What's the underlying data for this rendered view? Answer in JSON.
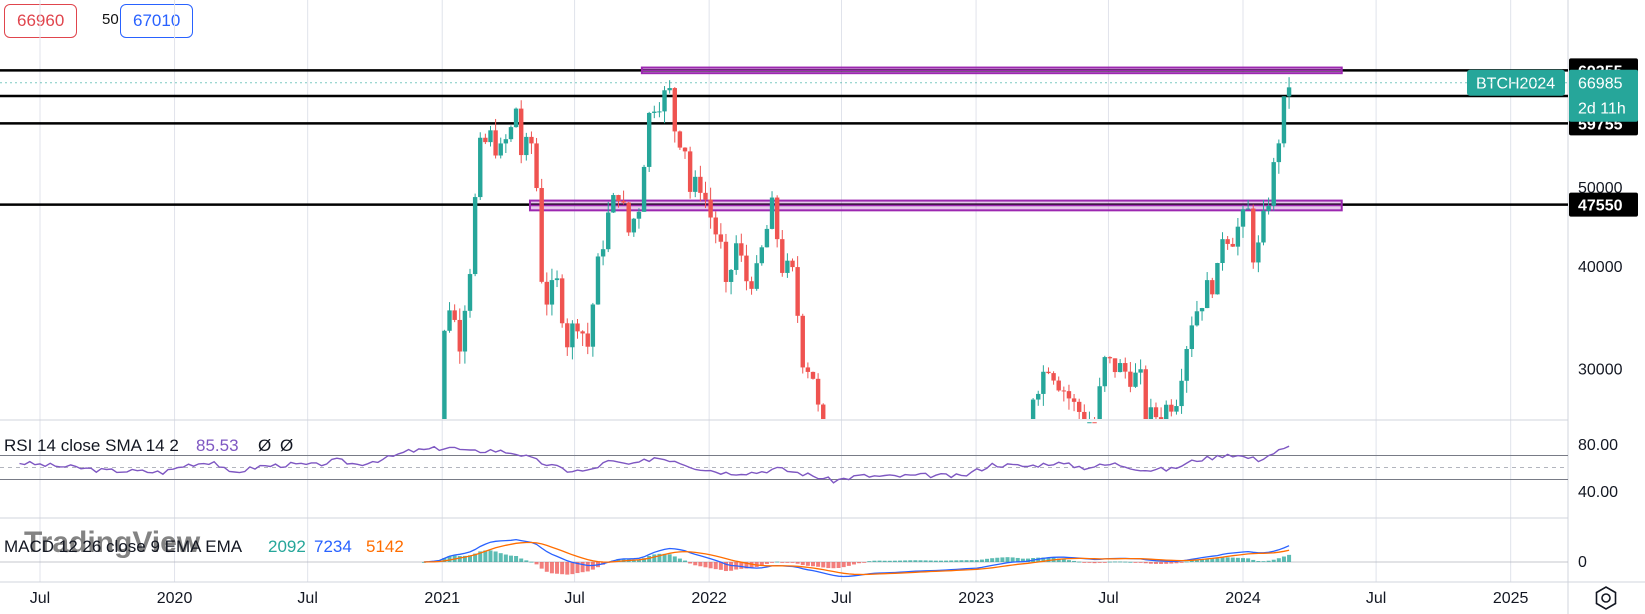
{
  "top_bar": {
    "bid": "66960",
    "spread": "50",
    "ask": "67010"
  },
  "colors": {
    "up": "#26a69a",
    "down": "#ef5350",
    "zone": "#9c27b0",
    "rsi": "#7e57c2",
    "macd": "#2962ff",
    "signal": "#ff6d00",
    "last_badge": "#26a69a",
    "level_badge": "#000000"
  },
  "watermark": "TradingView",
  "settings_icon": "gear-hexagon-icon",
  "chart_data": [
    {
      "type": "candlestick",
      "symbol_label": "BTCH2024",
      "last_price": "66985",
      "countdown": "2d 11h",
      "y_ticks": [
        "50000",
        "40000",
        "30000"
      ],
      "y_tick_values": [
        50000,
        40000,
        30000
      ],
      "x_ticks": [
        "Jul",
        "2020",
        "Jul",
        "2021",
        "Jul",
        "2022",
        "Jul",
        "2023",
        "Jul",
        "2024",
        "Jul",
        "2025"
      ],
      "x_tick_dates": [
        "2019-07-01",
        "2020-01-01",
        "2020-07-01",
        "2021-01-01",
        "2021-07-01",
        "2022-01-01",
        "2022-07-01",
        "2023-01-01",
        "2023-07-01",
        "2024-01-01",
        "2024-07-01",
        "2025-01-01"
      ],
      "horizontal_levels": [
        {
          "label": "69355",
          "value": 69355
        },
        {
          "label": "64540",
          "value": 64540
        },
        {
          "label": "59755",
          "value": 59755
        },
        {
          "label": "47550",
          "value": 47550
        }
      ],
      "zones": [
        {
          "from_date": "2021-10-01",
          "to_date": "2024-05-15",
          "low": 68800,
          "high": 69900
        },
        {
          "from_date": "2021-05-01",
          "to_date": "2024-05-15",
          "low": 46800,
          "high": 48100
        }
      ],
      "weekly_close_path": [
        [
          "2020-12-07",
          19000
        ],
        [
          "2020-12-28",
          24000
        ],
        [
          "2021-01-04",
          33000
        ],
        [
          "2021-01-11",
          36000
        ],
        [
          "2021-01-25",
          32500
        ],
        [
          "2021-02-08",
          40000
        ],
        [
          "2021-02-15",
          48000
        ],
        [
          "2021-02-22",
          55500
        ],
        [
          "2021-03-08",
          57500
        ],
        [
          "2021-03-22",
          55000
        ],
        [
          "2021-04-05",
          58500
        ],
        [
          "2021-04-12",
          62500
        ],
        [
          "2021-04-19",
          55000
        ],
        [
          "2021-05-03",
          56500
        ],
        [
          "2021-05-10",
          50000
        ],
        [
          "2021-05-17",
          39000
        ],
        [
          "2021-05-24",
          36500
        ],
        [
          "2021-06-07",
          38000
        ],
        [
          "2021-06-21",
          32500
        ],
        [
          "2021-07-05",
          34500
        ],
        [
          "2021-07-19",
          32000
        ],
        [
          "2021-08-02",
          40000
        ],
        [
          "2021-08-16",
          46000
        ],
        [
          "2021-08-30",
          49500
        ],
        [
          "2021-09-13",
          44000
        ],
        [
          "2021-09-27",
          47500
        ],
        [
          "2021-10-11",
          61000
        ],
        [
          "2021-10-18",
          63500
        ],
        [
          "2021-11-08",
          65000
        ],
        [
          "2021-11-15",
          59000
        ],
        [
          "2021-11-29",
          56000
        ],
        [
          "2021-12-06",
          49500
        ],
        [
          "2021-12-20",
          50500
        ],
        [
          "2022-01-03",
          46000
        ],
        [
          "2022-01-17",
          42000
        ],
        [
          "2022-01-24",
          37000
        ],
        [
          "2022-02-07",
          42500
        ],
        [
          "2022-02-21",
          38500
        ],
        [
          "2022-03-07",
          39000
        ],
        [
          "2022-03-28",
          47000
        ],
        [
          "2022-04-11",
          40000
        ],
        [
          "2022-04-25",
          39000
        ],
        [
          "2022-05-09",
          31000
        ],
        [
          "2022-05-23",
          29500
        ],
        [
          "2022-06-13",
          21000
        ],
        [
          "2022-06-27",
          19500
        ],
        [
          "2022-07-18",
          23000
        ],
        [
          "2022-08-08",
          24000
        ],
        [
          "2022-08-29",
          20000
        ],
        [
          "2022-10-03",
          19500
        ],
        [
          "2022-11-07",
          16800
        ],
        [
          "2022-12-05",
          17000
        ],
        [
          "2023-01-02",
          16700
        ],
        [
          "2023-01-16",
          21000
        ],
        [
          "2023-02-13",
          24500
        ],
        [
          "2023-03-06",
          22000
        ],
        [
          "2023-03-20",
          28000
        ],
        [
          "2023-04-10",
          30500
        ],
        [
          "2023-04-24",
          29000
        ],
        [
          "2023-05-15",
          27000
        ],
        [
          "2023-06-12",
          25500
        ],
        [
          "2023-06-26",
          30500
        ],
        [
          "2023-07-17",
          30000
        ],
        [
          "2023-08-14",
          29000
        ],
        [
          "2023-08-21",
          26000
        ],
        [
          "2023-09-11",
          26500
        ],
        [
          "2023-10-02",
          27800
        ],
        [
          "2023-10-23",
          34500
        ],
        [
          "2023-11-13",
          37500
        ],
        [
          "2023-11-27",
          39000
        ],
        [
          "2023-12-04",
          44000
        ],
        [
          "2023-12-18",
          43500
        ],
        [
          "2024-01-08",
          46500
        ],
        [
          "2024-01-15",
          41500
        ],
        [
          "2024-01-22",
          42000
        ],
        [
          "2024-02-05",
          48500
        ],
        [
          "2024-02-12",
          52500
        ],
        [
          "2024-02-26",
          62500
        ],
        [
          "2024-03-04",
          66985
        ]
      ]
    },
    {
      "type": "line",
      "indicator": "RSI",
      "title": "RSI 14 close SMA 14 2",
      "value_label": "85.53",
      "extra_labels": [
        "Ø",
        "Ø"
      ],
      "y_ticks": [
        "80.00",
        "40.00"
      ],
      "bands": [
        70,
        30
      ],
      "midline": 50,
      "points": [
        [
          "2019-06-03",
          58
        ],
        [
          "2019-07-08",
          54
        ],
        [
          "2019-08-19",
          50
        ],
        [
          "2019-09-23",
          45
        ],
        [
          "2019-11-04",
          44
        ],
        [
          "2019-12-16",
          42
        ],
        [
          "2020-01-20",
          55
        ],
        [
          "2020-02-24",
          60
        ],
        [
          "2020-03-16",
          40
        ],
        [
          "2020-04-27",
          52
        ],
        [
          "2020-06-08",
          55
        ],
        [
          "2020-07-13",
          54
        ],
        [
          "2020-08-10",
          62
        ],
        [
          "2020-09-07",
          55
        ],
        [
          "2020-10-19",
          66
        ],
        [
          "2020-11-16",
          77
        ],
        [
          "2020-12-14",
          80
        ],
        [
          "2021-01-11",
          84
        ],
        [
          "2021-02-08",
          76
        ],
        [
          "2021-03-08",
          79
        ],
        [
          "2021-04-12",
          74
        ],
        [
          "2021-05-17",
          58
        ],
        [
          "2021-06-21",
          45
        ],
        [
          "2021-07-19",
          44
        ],
        [
          "2021-08-16",
          60
        ],
        [
          "2021-09-20",
          54
        ],
        [
          "2021-10-18",
          67
        ],
        [
          "2021-11-15",
          62
        ],
        [
          "2021-12-13",
          50
        ],
        [
          "2022-01-24",
          41
        ],
        [
          "2022-03-07",
          42
        ],
        [
          "2022-04-04",
          48
        ],
        [
          "2022-05-16",
          38
        ],
        [
          "2022-06-20",
          28
        ],
        [
          "2022-07-25",
          36
        ],
        [
          "2022-09-05",
          35
        ],
        [
          "2022-10-31",
          37
        ],
        [
          "2022-12-12",
          35
        ],
        [
          "2023-01-23",
          55
        ],
        [
          "2023-03-13",
          52
        ],
        [
          "2023-04-17",
          58
        ],
        [
          "2023-05-29",
          50
        ],
        [
          "2023-07-10",
          56
        ],
        [
          "2023-08-21",
          46
        ],
        [
          "2023-09-25",
          47
        ],
        [
          "2023-10-30",
          63
        ],
        [
          "2023-11-27",
          68
        ],
        [
          "2023-12-11",
          73
        ],
        [
          "2024-01-22",
          63
        ],
        [
          "2024-02-12",
          74
        ],
        [
          "2024-03-04",
          85.53
        ]
      ]
    },
    {
      "type": "histogram+line",
      "indicator": "MACD",
      "title": "MACD 12 26 close 9 EMA EMA",
      "values": [
        "2092",
        "7234",
        "5142"
      ],
      "y_ticks": [
        "0"
      ]
    }
  ]
}
